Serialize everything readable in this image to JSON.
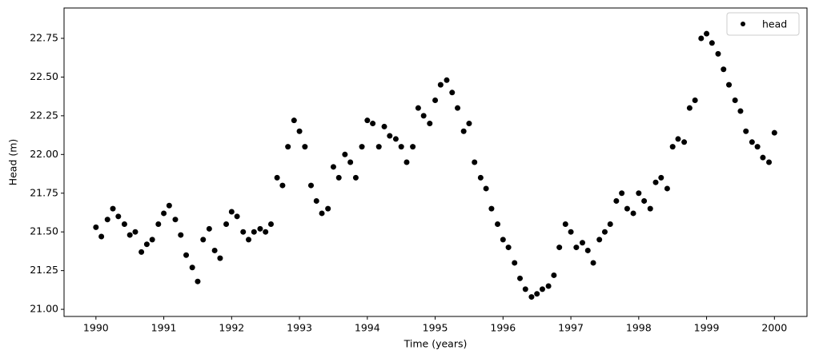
{
  "chart_data": {
    "type": "scatter",
    "xlabel": "Time (years)",
    "ylabel": "Head (m)",
    "x": [
      1990,
      1990.08,
      1990.17,
      1990.25,
      1990.33,
      1990.42,
      1990.5,
      1990.58,
      1990.67,
      1990.75,
      1990.83,
      1990.92,
      1991,
      1991.08,
      1991.17,
      1991.25,
      1991.33,
      1991.42,
      1991.5,
      1991.58,
      1991.67,
      1991.75,
      1991.83,
      1991.92,
      1992,
      1992.08,
      1992.17,
      1992.25,
      1992.33,
      1992.42,
      1992.5,
      1992.58,
      1992.67,
      1992.75,
      1992.83,
      1992.92,
      1993,
      1993.08,
      1993.17,
      1993.25,
      1993.33,
      1993.42,
      1993.5,
      1993.58,
      1993.67,
      1993.75,
      1993.83,
      1993.92,
      1994,
      1994.08,
      1994.17,
      1994.25,
      1994.33,
      1994.42,
      1994.5,
      1994.58,
      1994.67,
      1994.75,
      1994.83,
      1994.92,
      1995,
      1995.08,
      1995.17,
      1995.25,
      1995.33,
      1995.42,
      1995.5,
      1995.58,
      1995.67,
      1995.75,
      1995.83,
      1995.92,
      1996,
      1996.08,
      1996.17,
      1996.25,
      1996.33,
      1996.42,
      1996.5,
      1996.58,
      1996.67,
      1996.75,
      1996.83,
      1996.92,
      1997,
      1997.08,
      1997.17,
      1997.25,
      1997.33,
      1997.42,
      1997.5,
      1997.58,
      1997.67,
      1997.75,
      1997.83,
      1997.92,
      1998,
      1998.08,
      1998.17,
      1998.25,
      1998.33,
      1998.42,
      1998.5,
      1998.58,
      1998.67,
      1998.75,
      1998.83,
      1998.92,
      1999,
      1999.08,
      1999.17,
      1999.25,
      1999.33,
      1999.42,
      1999.5,
      1999.58,
      1999.67,
      1999.75,
      1999.83,
      1999.92,
      2000
    ],
    "series": [
      {
        "name": "head",
        "color": "#000000",
        "values": [
          21.53,
          21.47,
          21.58,
          21.65,
          21.6,
          21.55,
          21.48,
          21.5,
          21.37,
          21.42,
          21.45,
          21.55,
          21.62,
          21.67,
          21.58,
          21.48,
          21.35,
          21.27,
          21.18,
          21.45,
          21.52,
          21.38,
          21.33,
          21.55,
          21.63,
          21.6,
          21.5,
          21.45,
          21.5,
          21.52,
          21.5,
          21.55,
          21.85,
          21.8,
          22.05,
          22.22,
          22.15,
          22.05,
          21.8,
          21.7,
          21.62,
          21.65,
          21.92,
          21.85,
          22.0,
          21.95,
          21.85,
          22.05,
          22.22,
          22.2,
          22.05,
          22.18,
          22.12,
          22.1,
          22.05,
          21.95,
          22.05,
          22.3,
          22.25,
          22.2,
          22.35,
          22.45,
          22.48,
          22.4,
          22.3,
          22.15,
          22.2,
          21.95,
          21.85,
          21.78,
          21.65,
          21.55,
          21.45,
          21.4,
          21.3,
          21.2,
          21.13,
          21.08,
          21.1,
          21.13,
          21.15,
          21.22,
          21.4,
          21.55,
          21.5,
          21.4,
          21.43,
          21.38,
          21.3,
          21.45,
          21.5,
          21.55,
          21.7,
          21.75,
          21.65,
          21.62,
          21.75,
          21.7,
          21.65,
          21.82,
          21.85,
          21.78,
          22.05,
          22.1,
          22.08,
          22.3,
          22.35,
          22.75,
          22.78,
          22.72,
          22.65,
          22.55,
          22.45,
          22.35,
          22.28,
          22.15,
          22.08,
          22.05,
          21.98,
          21.95,
          22.14
        ]
      }
    ],
    "xlim": [
      1989.53,
      2000.48
    ],
    "xticks": [
      1990,
      1991,
      1992,
      1993,
      1994,
      1995,
      1996,
      1997,
      1998,
      1999,
      2000
    ],
    "ylim": [
      20.954,
      22.946
    ],
    "yticks": [
      {
        "value": 21,
        "label": "21.00"
      },
      21.25,
      {
        "value": 21.5,
        "label": "21.50"
      },
      21.75,
      {
        "value": 22,
        "label": "22.00"
      },
      22.25,
      {
        "value": 22.5,
        "label": "22.50"
      },
      22.75
    ],
    "legend": "upper right",
    "grid": false
  }
}
